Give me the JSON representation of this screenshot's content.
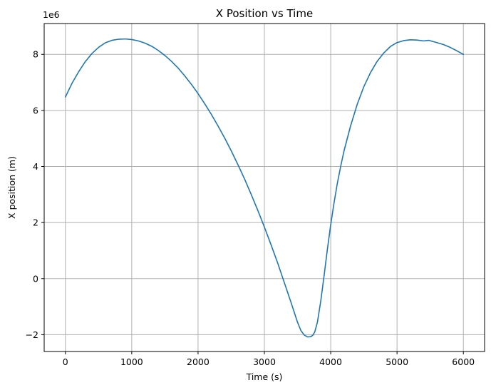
{
  "chart_data": {
    "type": "line",
    "title": "X Position vs Time",
    "xlabel": "Time (s)",
    "ylabel": "X position (m)",
    "y_scale_label": "1e6",
    "xlim": [
      -320,
      6320
    ],
    "ylim": [
      -2.6,
      9.1
    ],
    "y_multiplier": 1000000,
    "xticks": [
      0,
      1000,
      2000,
      3000,
      4000,
      5000,
      6000
    ],
    "xtick_labels": [
      "0",
      "1000",
      "2000",
      "3000",
      "4000",
      "5000",
      "6000"
    ],
    "yticks": [
      -2,
      0,
      2,
      4,
      6,
      8
    ],
    "ytick_labels": [
      "−2",
      "0",
      "2",
      "4",
      "6",
      "8"
    ],
    "grid": true,
    "series": [
      {
        "color": "#1f77b4",
        "x": [
          0,
          100,
          200,
          300,
          400,
          500,
          600,
          700,
          800,
          900,
          1000,
          1100,
          1200,
          1300,
          1400,
          1500,
          1600,
          1700,
          1800,
          1900,
          2000,
          2100,
          2200,
          2300,
          2400,
          2500,
          2600,
          2700,
          2800,
          2900,
          3000,
          3100,
          3200,
          3300,
          3400,
          3500,
          3550,
          3600,
          3650,
          3700,
          3730,
          3760,
          3800,
          3850,
          3900,
          3950,
          4000,
          4050,
          4100,
          4150,
          4200,
          4300,
          4400,
          4500,
          4600,
          4700,
          4800,
          4900,
          5000,
          5100,
          5200,
          5300,
          5400,
          5480,
          5600,
          5700,
          5800,
          5900,
          6000
        ],
        "y": [
          6.48,
          6.97,
          7.38,
          7.74,
          8.03,
          8.25,
          8.41,
          8.5,
          8.54,
          8.55,
          8.53,
          8.48,
          8.4,
          8.29,
          8.14,
          7.96,
          7.75,
          7.51,
          7.23,
          6.93,
          6.6,
          6.24,
          5.86,
          5.45,
          5.02,
          4.56,
          4.07,
          3.56,
          3.01,
          2.44,
          1.84,
          1.21,
          0.56,
          -0.14,
          -0.84,
          -1.56,
          -1.85,
          -2.01,
          -2.08,
          -2.07,
          -2.02,
          -1.9,
          -1.55,
          -0.8,
          0.1,
          1.05,
          1.92,
          2.7,
          3.4,
          4.0,
          4.55,
          5.45,
          6.22,
          6.85,
          7.35,
          7.75,
          8.05,
          8.28,
          8.42,
          8.49,
          8.52,
          8.51,
          8.48,
          8.5,
          8.42,
          8.35,
          8.25,
          8.13,
          8.0
        ]
      }
    ]
  }
}
